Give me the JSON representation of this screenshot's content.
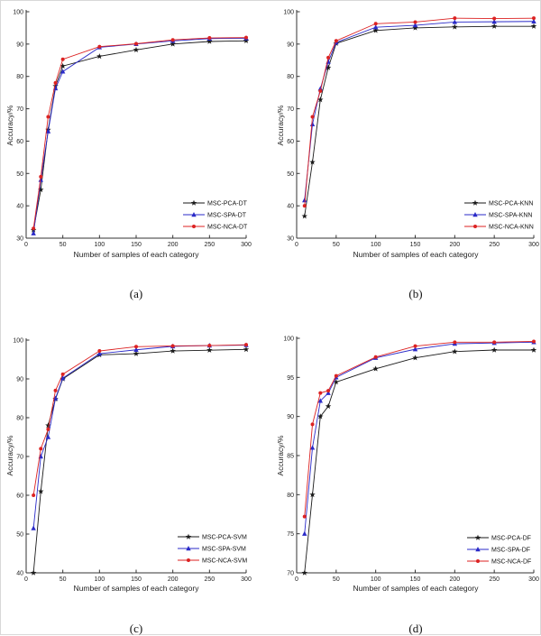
{
  "figure": {
    "background": "#ffffff",
    "axis_color": "#333333",
    "colors": {
      "pca": "#1a1a1a",
      "spa": "#2a2ac8",
      "nca": "#dc2222"
    }
  },
  "chart_data": [
    {
      "type": "line",
      "caption": "(a)",
      "xlabel": "Number of samples of each category",
      "ylabel": "Accuracy/%",
      "x": [
        10,
        20,
        30,
        40,
        50,
        100,
        150,
        200,
        250,
        300
      ],
      "xlim": [
        0,
        300
      ],
      "xticks": [
        0,
        50,
        100,
        150,
        200,
        250,
        300
      ],
      "ylim": [
        30,
        100
      ],
      "yticks": [
        30,
        40,
        50,
        60,
        70,
        80,
        90,
        100
      ],
      "grid": false,
      "legend_position": "lower right",
      "series": [
        {
          "name": "MSC-PCA-DT",
          "color": "#1a1a1a",
          "marker": "star",
          "values": [
            32.5,
            45,
            63.5,
            77,
            83.2,
            86.2,
            88.2,
            90,
            90.8,
            91
          ]
        },
        {
          "name": "MSC-SPA-DT",
          "color": "#2a2ac8",
          "marker": "triangle",
          "values": [
            31.5,
            48,
            63,
            76.3,
            81.5,
            89,
            90,
            91,
            91.7,
            91.8
          ]
        },
        {
          "name": "MSC-NCA-DT",
          "color": "#dc2222",
          "marker": "circle",
          "values": [
            33,
            49,
            67.5,
            78,
            85.3,
            89.2,
            90.1,
            91.3,
            91.9,
            92
          ]
        }
      ]
    },
    {
      "type": "line",
      "caption": "(b)",
      "xlabel": "Number of samples of each category",
      "ylabel": "Accuracy/%",
      "x": [
        10,
        20,
        30,
        40,
        50,
        100,
        150,
        200,
        250,
        300
      ],
      "xlim": [
        0,
        300
      ],
      "xticks": [
        0,
        50,
        100,
        150,
        200,
        250,
        300
      ],
      "ylim": [
        30,
        100
      ],
      "yticks": [
        30,
        40,
        50,
        60,
        70,
        80,
        90,
        100
      ],
      "grid": false,
      "legend_position": "lower right",
      "series": [
        {
          "name": "MSC-PCA-KNN",
          "color": "#1a1a1a",
          "marker": "star",
          "values": [
            36.8,
            53.5,
            72.8,
            82.7,
            90.2,
            94.2,
            95,
            95.3,
            95.5,
            95.5
          ]
        },
        {
          "name": "MSC-SPA-KNN",
          "color": "#2a2ac8",
          "marker": "triangle",
          "values": [
            41.7,
            65.2,
            76.2,
            84.5,
            90.5,
            95.2,
            95.8,
            96.8,
            96.9,
            97
          ]
        },
        {
          "name": "MSC-NCA-KNN",
          "color": "#dc2222",
          "marker": "circle",
          "values": [
            40,
            67.5,
            75.5,
            85.8,
            91,
            96.3,
            96.8,
            98,
            97.9,
            98
          ]
        }
      ]
    },
    {
      "type": "line",
      "caption": "(c)",
      "xlabel": "Number of samples of each category",
      "ylabel": "Accuracy/%",
      "x": [
        10,
        20,
        30,
        40,
        50,
        100,
        150,
        200,
        250,
        300
      ],
      "xlim": [
        0,
        300
      ],
      "xticks": [
        0,
        50,
        100,
        150,
        200,
        250,
        300
      ],
      "ylim": [
        40,
        100
      ],
      "yticks": [
        40,
        50,
        60,
        70,
        80,
        90,
        100
      ],
      "grid": false,
      "legend_position": "lower right",
      "series": [
        {
          "name": "MSC-PCA-SVM",
          "color": "#1a1a1a",
          "marker": "star",
          "values": [
            40,
            61,
            78,
            84.8,
            90,
            96.2,
            96.5,
            97.2,
            97.4,
            97.6
          ]
        },
        {
          "name": "MSC-SPA-SVM",
          "color": "#2a2ac8",
          "marker": "triangle",
          "values": [
            51.5,
            70,
            75,
            85,
            90.2,
            96.5,
            97.5,
            98.4,
            98.6,
            98.7
          ]
        },
        {
          "name": "MSC-NCA-SVM",
          "color": "#dc2222",
          "marker": "circle",
          "values": [
            60,
            72,
            77,
            87,
            91.2,
            97.2,
            98.3,
            98.5,
            98.6,
            98.8
          ]
        }
      ]
    },
    {
      "type": "line",
      "caption": "(d)",
      "xlabel": "Number of samples of each category",
      "ylabel": "Accuracy/%",
      "x": [
        10,
        20,
        30,
        40,
        50,
        100,
        150,
        200,
        250,
        300
      ],
      "xlim": [
        0,
        300
      ],
      "xticks": [
        0,
        50,
        100,
        150,
        200,
        250,
        300
      ],
      "ylim": [
        70,
        100
      ],
      "yticks": [
        70,
        75,
        80,
        85,
        90,
        95,
        100
      ],
      "grid": false,
      "legend_position": "lower right",
      "series": [
        {
          "name": "MSC-PCA-DF",
          "color": "#1a1a1a",
          "marker": "star",
          "values": [
            70,
            80,
            90,
            91.3,
            94.4,
            96.1,
            97.5,
            98.3,
            98.5,
            98.5
          ]
        },
        {
          "name": "MSC-SPA-DF",
          "color": "#2a2ac8",
          "marker": "triangle",
          "values": [
            75,
            86,
            92,
            93,
            95,
            97.5,
            98.6,
            99.3,
            99.4,
            99.5
          ]
        },
        {
          "name": "MSC-NCA-DF",
          "color": "#dc2222",
          "marker": "circle",
          "values": [
            77.2,
            89,
            93,
            93.3,
            95.2,
            97.6,
            99,
            99.5,
            99.5,
            99.6
          ]
        }
      ]
    }
  ]
}
